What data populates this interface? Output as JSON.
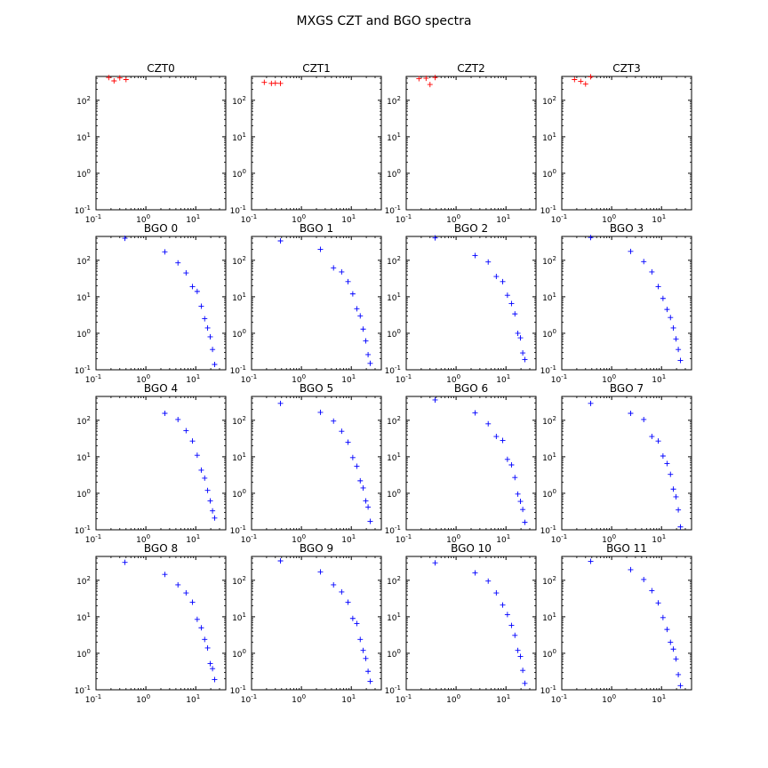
{
  "figure": {
    "title": "MXGS CZT and BGO spectra"
  },
  "chart_data": [
    {
      "type": "scatter",
      "title": "CZT0",
      "xscale": "log",
      "yscale": "log",
      "xlim": [
        0.1,
        40
      ],
      "ylim": [
        0.1,
        450
      ],
      "xticks": [
        0.1,
        1,
        10
      ],
      "yticks": [
        0.1,
        1,
        10,
        100
      ],
      "color": "#ff0000",
      "marker": "+",
      "x": [
        0.18,
        0.23,
        0.3,
        0.4
      ],
      "y": [
        420,
        340,
        410,
        370
      ]
    },
    {
      "type": "scatter",
      "title": "CZT1",
      "xscale": "log",
      "yscale": "log",
      "xlim": [
        0.1,
        40
      ],
      "ylim": [
        0.1,
        450
      ],
      "xticks": [
        0.1,
        1,
        10
      ],
      "yticks": [
        0.1,
        1,
        10,
        100
      ],
      "color": "#ff0000",
      "marker": "+",
      "x": [
        0.18,
        0.25,
        0.3,
        0.38
      ],
      "y": [
        310,
        290,
        295,
        290
      ]
    },
    {
      "type": "scatter",
      "title": "CZT2",
      "xscale": "log",
      "yscale": "log",
      "xlim": [
        0.1,
        40
      ],
      "ylim": [
        0.1,
        450
      ],
      "xticks": [
        0.1,
        1,
        10
      ],
      "yticks": [
        0.1,
        1,
        10,
        100
      ],
      "color": "#ff0000",
      "marker": "+",
      "x": [
        0.18,
        0.25,
        0.3,
        0.38
      ],
      "y": [
        390,
        400,
        270,
        420
      ]
    },
    {
      "type": "scatter",
      "title": "CZT3",
      "xscale": "log",
      "yscale": "log",
      "xlim": [
        0.1,
        40
      ],
      "ylim": [
        0.1,
        450
      ],
      "xticks": [
        0.1,
        1,
        10
      ],
      "yticks": [
        0.1,
        1,
        10,
        100
      ],
      "color": "#ff0000",
      "marker": "+",
      "x": [
        0.18,
        0.24,
        0.3,
        0.38
      ],
      "y": [
        370,
        330,
        280,
        440
      ]
    },
    {
      "type": "scatter",
      "title": "BGO 0",
      "xscale": "log",
      "yscale": "log",
      "xlim": [
        0.1,
        40
      ],
      "ylim": [
        0.1,
        450
      ],
      "xticks": [
        0.1,
        1,
        10
      ],
      "yticks": [
        0.1,
        1,
        10,
        100
      ],
      "color": "#0000ff",
      "marker": "+",
      "x": [
        0.38,
        2.4,
        4.4,
        6.4,
        8.6,
        10.7,
        12.9,
        15.1,
        17.3,
        19.5,
        21.7,
        23.9
      ],
      "y": [
        400,
        170,
        85,
        45,
        19,
        14,
        5.5,
        2.5,
        1.4,
        0.8,
        0.36,
        0.14
      ]
    },
    {
      "type": "scatter",
      "title": "BGO 1",
      "xscale": "log",
      "yscale": "log",
      "xlim": [
        0.1,
        40
      ],
      "ylim": [
        0.1,
        450
      ],
      "xticks": [
        0.1,
        1,
        10
      ],
      "yticks": [
        0.1,
        1,
        10,
        100
      ],
      "color": "#0000ff",
      "marker": "+",
      "x": [
        0.38,
        2.4,
        4.4,
        6.4,
        8.6,
        10.7,
        12.9,
        15.1,
        17.3,
        19.5,
        21.7,
        23.9
      ],
      "y": [
        340,
        200,
        62,
        48,
        26,
        12,
        4.7,
        3.0,
        1.3,
        0.62,
        0.26,
        0.15
      ]
    },
    {
      "type": "scatter",
      "title": "BGO 2",
      "xscale": "log",
      "yscale": "log",
      "xlim": [
        0.1,
        40
      ],
      "ylim": [
        0.1,
        450
      ],
      "xticks": [
        0.1,
        1,
        10
      ],
      "yticks": [
        0.1,
        1,
        10,
        100
      ],
      "color": "#0000ff",
      "marker": "+",
      "x": [
        0.38,
        2.4,
        4.4,
        6.4,
        8.6,
        10.7,
        12.9,
        15.1,
        17.3,
        19.5,
        21.7,
        23.9
      ],
      "y": [
        410,
        135,
        90,
        36,
        26,
        11,
        6.5,
        3.4,
        1.0,
        0.75,
        0.29,
        0.19
      ]
    },
    {
      "type": "scatter",
      "title": "BGO 3",
      "xscale": "log",
      "yscale": "log",
      "xlim": [
        0.1,
        40
      ],
      "ylim": [
        0.1,
        450
      ],
      "xticks": [
        0.1,
        1,
        10
      ],
      "yticks": [
        0.1,
        1,
        10,
        100
      ],
      "color": "#0000ff",
      "marker": "+",
      "x": [
        0.38,
        2.4,
        4.4,
        6.4,
        8.6,
        10.7,
        12.9,
        15.1,
        17.3,
        19.5,
        21.7,
        23.9
      ],
      "y": [
        420,
        175,
        92,
        48,
        19,
        9,
        4.5,
        2.7,
        1.4,
        0.7,
        0.36,
        0.18
      ]
    },
    {
      "type": "scatter",
      "title": "BGO 4",
      "xscale": "log",
      "yscale": "log",
      "xlim": [
        0.1,
        40
      ],
      "ylim": [
        0.1,
        450
      ],
      "xticks": [
        0.1,
        1,
        10
      ],
      "yticks": [
        0.1,
        1,
        10,
        100
      ],
      "color": "#0000ff",
      "marker": "+",
      "x": [
        2.4,
        4.4,
        6.4,
        8.6,
        10.7,
        12.9,
        15.1,
        17.3,
        19.5,
        21.7,
        23.9
      ],
      "y": [
        155,
        105,
        52,
        27,
        11,
        4.3,
        2.6,
        1.2,
        0.62,
        0.33,
        0.21
      ]
    },
    {
      "type": "scatter",
      "title": "BGO 5",
      "xscale": "log",
      "yscale": "log",
      "xlim": [
        0.1,
        40
      ],
      "ylim": [
        0.1,
        450
      ],
      "xticks": [
        0.1,
        1,
        10
      ],
      "yticks": [
        0.1,
        1,
        10,
        100
      ],
      "color": "#0000ff",
      "marker": "+",
      "x": [
        0.38,
        2.4,
        4.4,
        6.4,
        8.6,
        10.7,
        12.9,
        15.1,
        17.3,
        19.5,
        21.7,
        23.9
      ],
      "y": [
        290,
        165,
        95,
        50,
        25,
        9.5,
        5.5,
        2.2,
        1.4,
        0.62,
        0.42,
        0.17
      ]
    },
    {
      "type": "scatter",
      "title": "BGO 6",
      "xscale": "log",
      "yscale": "log",
      "xlim": [
        0.1,
        40
      ],
      "ylim": [
        0.1,
        450
      ],
      "xticks": [
        0.1,
        1,
        10
      ],
      "yticks": [
        0.1,
        1,
        10,
        100
      ],
      "color": "#0000ff",
      "marker": "+",
      "x": [
        0.38,
        2.4,
        4.4,
        6.4,
        8.6,
        10.7,
        12.9,
        15.1,
        17.3,
        19.5,
        21.7,
        23.9
      ],
      "y": [
        360,
        160,
        80,
        36,
        28,
        8.5,
        6,
        2.7,
        0.95,
        0.6,
        0.36,
        0.16
      ]
    },
    {
      "type": "scatter",
      "title": "BGO 7",
      "xscale": "log",
      "yscale": "log",
      "xlim": [
        0.1,
        40
      ],
      "ylim": [
        0.1,
        450
      ],
      "xticks": [
        0.1,
        1,
        10
      ],
      "yticks": [
        0.1,
        1,
        10,
        100
      ],
      "color": "#0000ff",
      "marker": "+",
      "x": [
        0.38,
        2.4,
        4.4,
        6.4,
        8.6,
        10.7,
        12.9,
        15.1,
        17.3,
        19.5,
        21.7,
        23.9
      ],
      "y": [
        290,
        155,
        105,
        36,
        27,
        10.5,
        6.5,
        3.3,
        1.3,
        0.8,
        0.35,
        0.12
      ]
    },
    {
      "type": "scatter",
      "title": "BGO 8",
      "xscale": "log",
      "yscale": "log",
      "xlim": [
        0.1,
        40
      ],
      "ylim": [
        0.1,
        450
      ],
      "xticks": [
        0.1,
        1,
        10
      ],
      "yticks": [
        0.1,
        1,
        10,
        100
      ],
      "color": "#0000ff",
      "marker": "+",
      "x": [
        0.38,
        2.4,
        4.4,
        6.4,
        8.6,
        10.7,
        12.9,
        15.1,
        17.3,
        19.5,
        21.7,
        23.9
      ],
      "y": [
        310,
        145,
        75,
        45,
        25,
        8.5,
        5,
        2.4,
        1.4,
        0.52,
        0.38,
        0.19
      ]
    },
    {
      "type": "scatter",
      "title": "BGO 9",
      "xscale": "log",
      "yscale": "log",
      "xlim": [
        0.1,
        40
      ],
      "ylim": [
        0.1,
        450
      ],
      "xticks": [
        0.1,
        1,
        10
      ],
      "yticks": [
        0.1,
        1,
        10,
        100
      ],
      "color": "#0000ff",
      "marker": "+",
      "x": [
        0.38,
        2.4,
        4.4,
        6.4,
        8.6,
        10.7,
        12.9,
        15.1,
        17.3,
        19.5,
        21.7,
        23.9
      ],
      "y": [
        340,
        170,
        75,
        48,
        25,
        9,
        6.5,
        2.4,
        1.2,
        0.72,
        0.32,
        0.17
      ]
    },
    {
      "type": "scatter",
      "title": "BGO 10",
      "xscale": "log",
      "yscale": "log",
      "xlim": [
        0.1,
        40
      ],
      "ylim": [
        0.1,
        450
      ],
      "xticks": [
        0.1,
        1,
        10
      ],
      "yticks": [
        0.1,
        1,
        10,
        100
      ],
      "color": "#0000ff",
      "marker": "+",
      "x": [
        0.38,
        2.4,
        4.4,
        6.4,
        8.6,
        10.7,
        12.9,
        15.1,
        17.3,
        19.5,
        21.7,
        23.9
      ],
      "y": [
        300,
        160,
        95,
        45,
        21,
        11.5,
        5.8,
        3.1,
        1.2,
        0.82,
        0.34,
        0.15
      ]
    },
    {
      "type": "scatter",
      "title": "BGO 11",
      "xscale": "log",
      "yscale": "log",
      "xlim": [
        0.1,
        40
      ],
      "ylim": [
        0.1,
        450
      ],
      "xticks": [
        0.1,
        1,
        10
      ],
      "yticks": [
        0.1,
        1,
        10,
        100
      ],
      "color": "#0000ff",
      "marker": "+",
      "x": [
        0.38,
        2.4,
        4.4,
        6.4,
        8.6,
        10.7,
        12.9,
        15.1,
        17.3,
        19.5,
        21.7,
        23.9
      ],
      "y": [
        330,
        195,
        105,
        52,
        24,
        9.5,
        4.5,
        2.0,
        1.3,
        0.7,
        0.26,
        0.13
      ]
    }
  ]
}
